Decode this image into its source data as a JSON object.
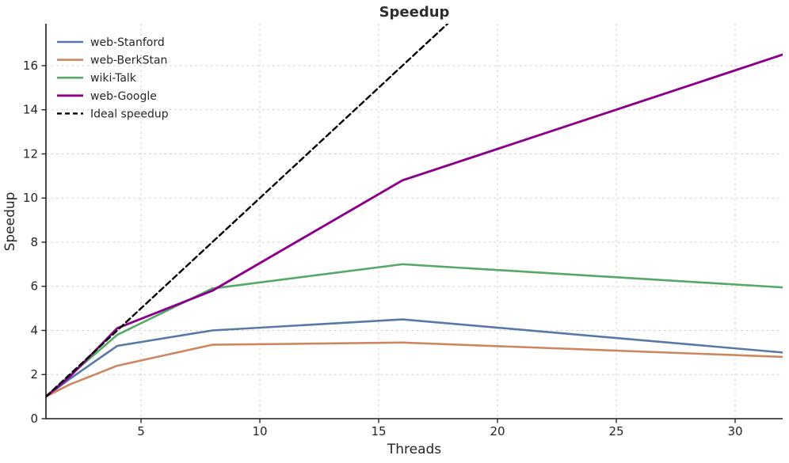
{
  "figure": {
    "title": "Speedup",
    "xlabel": "Threads",
    "ylabel": "Speedup"
  },
  "chart_data": {
    "type": "line",
    "title": "Speedup",
    "xlabel": "Threads",
    "ylabel": "Speedup",
    "x": [
      1,
      2,
      4,
      8,
      16,
      32
    ],
    "series": [
      {
        "name": "web-Stanford",
        "color": "#5878a8",
        "dash": "",
        "width": 2.6,
        "values": [
          1.0,
          1.8,
          3.3,
          4.0,
          4.5,
          3.0
        ]
      },
      {
        "name": "web-BerkStan",
        "color": "#cc8760",
        "dash": "",
        "width": 2.6,
        "values": [
          1.0,
          1.55,
          2.4,
          3.35,
          3.45,
          2.8
        ]
      },
      {
        "name": "wiki-Talk",
        "color": "#55a868",
        "dash": "",
        "width": 2.6,
        "values": [
          1.0,
          1.95,
          3.8,
          5.9,
          7.0,
          5.95
        ]
      },
      {
        "name": "web-Google",
        "color": "#8b008b",
        "dash": "",
        "width": 2.9,
        "values": [
          1.0,
          1.9,
          4.1,
          5.8,
          10.8,
          16.5
        ]
      },
      {
        "name": "Ideal speedup",
        "color": "#000000",
        "dash": "7 4.5",
        "width": 2.4,
        "values": [
          1,
          2,
          4,
          8,
          16,
          32
        ]
      }
    ],
    "xticks": [
      5,
      10,
      15,
      20,
      25,
      30
    ],
    "yticks": [
      0,
      2,
      4,
      6,
      8,
      10,
      12,
      14,
      16
    ],
    "xlim": [
      1,
      32
    ],
    "ylim": [
      0,
      17.9
    ],
    "grid": true,
    "grid_style": "dashed",
    "legend_position": "upper-left"
  },
  "colors": {
    "grid": "#cdcdcd",
    "spine": "#1a1a1a",
    "tick": "#262626"
  }
}
